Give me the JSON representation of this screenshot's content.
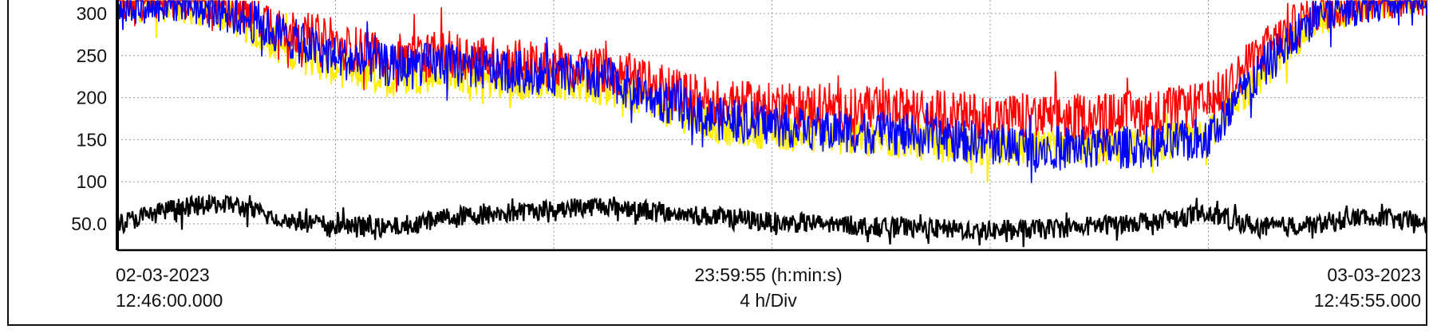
{
  "chart_data": {
    "type": "line",
    "title": "",
    "xlabel": "",
    "ylabel": "",
    "ylim": [
      20,
      340
    ],
    "yticks": [
      "300",
      "250",
      "200",
      "150",
      "100",
      "50.0"
    ],
    "ytick_values": [
      300,
      250,
      200,
      150,
      100,
      50
    ],
    "grid": true,
    "legend": "none",
    "x_units": "hours since 02-03-2023 12:46:00",
    "x_range": [
      0,
      24
    ],
    "x_start": {
      "date": "02-03-2023",
      "time": "12:46:00.000"
    },
    "x_end": {
      "date": "03-03-2023",
      "time": "12:45:55.000"
    },
    "x_span_label": "23:59:55 (h:min:s)",
    "x_scale_label": "4 h/Div",
    "series": [
      {
        "color": "#ffee00",
        "x": [
          0,
          1,
          2,
          3,
          4,
          5,
          6,
          7,
          8,
          9,
          10,
          11,
          12,
          13,
          14,
          15,
          16,
          17,
          18,
          19,
          20,
          21,
          22,
          23,
          24
        ],
        "values": [
          310,
          312,
          300,
          260,
          235,
          222,
          230,
          218,
          220,
          212,
          188,
          165,
          160,
          155,
          150,
          145,
          140,
          138,
          140,
          145,
          155,
          230,
          295,
          315,
          320
        ]
      },
      {
        "color": "#ff0000",
        "x": [
          0,
          1,
          2,
          3,
          4,
          5,
          6,
          7,
          8,
          9,
          10,
          11,
          12,
          13,
          14,
          15,
          16,
          17,
          18,
          19,
          20,
          21,
          22,
          23,
          24
        ],
        "values": [
          318,
          320,
          312,
          285,
          262,
          250,
          252,
          245,
          238,
          232,
          212,
          195,
          190,
          188,
          185,
          182,
          178,
          176,
          178,
          182,
          192,
          255,
          305,
          320,
          325
        ]
      },
      {
        "color": "#0000ff",
        "x": [
          0,
          1,
          2,
          3,
          4,
          5,
          6,
          7,
          8,
          9,
          10,
          11,
          12,
          13,
          14,
          15,
          16,
          17,
          18,
          19,
          20,
          21,
          22,
          23,
          24
        ],
        "values": [
          312,
          315,
          305,
          275,
          248,
          238,
          240,
          232,
          228,
          222,
          196,
          175,
          168,
          162,
          158,
          152,
          146,
          142,
          140,
          142,
          152,
          235,
          300,
          316,
          322
        ]
      },
      {
        "color": "#000000",
        "x": [
          0,
          1,
          2,
          3,
          4,
          5,
          6,
          7,
          8,
          9,
          10,
          11,
          12,
          13,
          14,
          15,
          16,
          17,
          18,
          19,
          20,
          21,
          22,
          23,
          24
        ],
        "values": [
          50,
          68,
          75,
          55,
          48,
          45,
          58,
          62,
          68,
          72,
          64,
          58,
          52,
          50,
          46,
          44,
          42,
          44,
          48,
          55,
          62,
          45,
          50,
          60,
          48
        ]
      }
    ]
  }
}
